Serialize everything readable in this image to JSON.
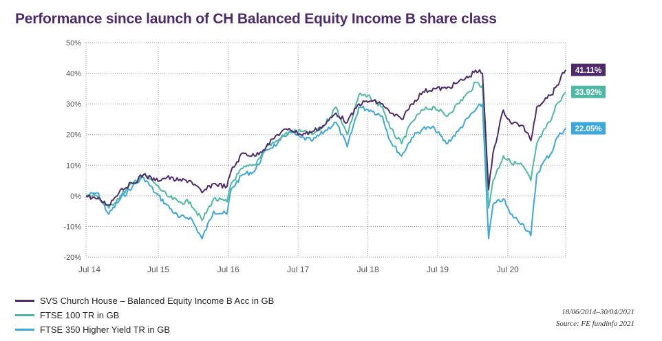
{
  "title": "Performance since launch of CH Balanced Equity Income B share class",
  "footnote": {
    "date_range": "18/06/2014–30/04/2021",
    "source": "Source: FE fundinfo 2021"
  },
  "chart_data": {
    "type": "line",
    "title": "Performance since launch of CH Balanced Equity Income B share class",
    "xlabel": "",
    "ylabel": "",
    "x_ticks": [
      "Jul 14",
      "Jul 15",
      "Jul 16",
      "Jul 17",
      "Jul 18",
      "Jul 19",
      "Jul 20"
    ],
    "x_range": [
      "2014-06-18",
      "2021-04-30"
    ],
    "y_ticks": [
      "50%",
      "40%",
      "30%",
      "20%",
      "10%",
      "0%",
      "-10%",
      "-20%"
    ],
    "ylim": [
      -20,
      50
    ],
    "grid": "dotted horizontal and vertical",
    "legend_position": "bottom-left",
    "series": [
      {
        "name": "SVS Church House – Balanced Equity Income B Acc in GB",
        "color": "#4e2a6b",
        "end_label": "41.11%",
        "points": [
          [
            "2014-06-18",
            0
          ],
          [
            "2014-08-15",
            -1
          ],
          [
            "2014-10-15",
            -3
          ],
          [
            "2014-12-15",
            2
          ],
          [
            "2015-02-15",
            4
          ],
          [
            "2015-04-15",
            7
          ],
          [
            "2015-06-15",
            5
          ],
          [
            "2015-08-15",
            6
          ],
          [
            "2015-10-15",
            5
          ],
          [
            "2015-12-15",
            5
          ],
          [
            "2016-02-15",
            1
          ],
          [
            "2016-04-15",
            4
          ],
          [
            "2016-06-24",
            3
          ],
          [
            "2016-07-15",
            8
          ],
          [
            "2016-09-15",
            14
          ],
          [
            "2016-11-15",
            13
          ],
          [
            "2017-01-15",
            16
          ],
          [
            "2017-03-15",
            20
          ],
          [
            "2017-05-15",
            22
          ],
          [
            "2017-07-15",
            20
          ],
          [
            "2017-09-15",
            21
          ],
          [
            "2017-11-15",
            23
          ],
          [
            "2018-01-15",
            27
          ],
          [
            "2018-03-15",
            24
          ],
          [
            "2018-05-15",
            30
          ],
          [
            "2018-07-15",
            31
          ],
          [
            "2018-09-15",
            30
          ],
          [
            "2018-10-25",
            27
          ],
          [
            "2018-12-24",
            25
          ],
          [
            "2019-02-15",
            30
          ],
          [
            "2019-04-15",
            34
          ],
          [
            "2019-06-15",
            35
          ],
          [
            "2019-08-15",
            35
          ],
          [
            "2019-10-15",
            37
          ],
          [
            "2019-12-15",
            39
          ],
          [
            "2020-01-15",
            41
          ],
          [
            "2020-02-20",
            40
          ],
          [
            "2020-03-23",
            2
          ],
          [
            "2020-04-15",
            14
          ],
          [
            "2020-06-08",
            28
          ],
          [
            "2020-07-15",
            24
          ],
          [
            "2020-09-15",
            23
          ],
          [
            "2020-10-30",
            18
          ],
          [
            "2020-11-30",
            29
          ],
          [
            "2021-01-15",
            32
          ],
          [
            "2021-02-15",
            33
          ],
          [
            "2021-03-15",
            36
          ],
          [
            "2021-04-30",
            41.11
          ]
        ]
      },
      {
        "name": "FTSE 100 TR in GB",
        "color": "#4db8a4",
        "end_label": "33.92%",
        "points": [
          [
            "2014-06-18",
            0
          ],
          [
            "2014-08-15",
            0
          ],
          [
            "2014-10-15",
            -4
          ],
          [
            "2014-12-15",
            0
          ],
          [
            "2015-02-15",
            4
          ],
          [
            "2015-04-15",
            7
          ],
          [
            "2015-06-15",
            4
          ],
          [
            "2015-08-15",
            0
          ],
          [
            "2015-10-15",
            -2
          ],
          [
            "2015-12-15",
            -2
          ],
          [
            "2016-02-15",
            -8
          ],
          [
            "2016-04-15",
            -1
          ],
          [
            "2016-06-24",
            -2
          ],
          [
            "2016-07-15",
            4
          ],
          [
            "2016-09-15",
            9
          ],
          [
            "2016-11-15",
            10
          ],
          [
            "2017-01-15",
            16
          ],
          [
            "2017-03-15",
            18
          ],
          [
            "2017-05-15",
            21
          ],
          [
            "2017-07-15",
            21
          ],
          [
            "2017-09-15",
            20
          ],
          [
            "2017-11-15",
            23
          ],
          [
            "2018-01-15",
            29
          ],
          [
            "2018-03-15",
            20
          ],
          [
            "2018-05-15",
            33
          ],
          [
            "2018-07-15",
            32
          ],
          [
            "2018-09-15",
            29
          ],
          [
            "2018-10-25",
            22
          ],
          [
            "2018-12-24",
            17
          ],
          [
            "2019-02-15",
            24
          ],
          [
            "2019-04-15",
            28
          ],
          [
            "2019-06-15",
            29
          ],
          [
            "2019-08-15",
            26
          ],
          [
            "2019-10-15",
            30
          ],
          [
            "2019-12-15",
            34
          ],
          [
            "2020-01-15",
            37
          ],
          [
            "2020-02-20",
            36
          ],
          [
            "2020-03-23",
            -4
          ],
          [
            "2020-04-15",
            5
          ],
          [
            "2020-06-08",
            13
          ],
          [
            "2020-07-15",
            11
          ],
          [
            "2020-09-15",
            10
          ],
          [
            "2020-10-30",
            5
          ],
          [
            "2020-11-30",
            17
          ],
          [
            "2021-01-15",
            22
          ],
          [
            "2021-02-15",
            25
          ],
          [
            "2021-03-15",
            30
          ],
          [
            "2021-04-30",
            33.92
          ]
        ]
      },
      {
        "name": "FTSE 350 Higher Yield TR in GB",
        "color": "#3ba7dc",
        "end_label": "22.05%",
        "points": [
          [
            "2014-06-18",
            0
          ],
          [
            "2014-08-15",
            1
          ],
          [
            "2014-10-15",
            -6
          ],
          [
            "2014-12-15",
            -1
          ],
          [
            "2015-02-15",
            3
          ],
          [
            "2015-04-15",
            6
          ],
          [
            "2015-06-15",
            1
          ],
          [
            "2015-08-15",
            -3
          ],
          [
            "2015-10-15",
            -7
          ],
          [
            "2015-12-15",
            -7
          ],
          [
            "2016-02-15",
            -14
          ],
          [
            "2016-04-15",
            -5
          ],
          [
            "2016-06-24",
            -6
          ],
          [
            "2016-07-15",
            2
          ],
          [
            "2016-09-15",
            7
          ],
          [
            "2016-11-15",
            8
          ],
          [
            "2017-01-15",
            15
          ],
          [
            "2017-03-15",
            17
          ],
          [
            "2017-05-15",
            21
          ],
          [
            "2017-07-15",
            19
          ],
          [
            "2017-09-15",
            18
          ],
          [
            "2017-11-15",
            21
          ],
          [
            "2018-01-15",
            24
          ],
          [
            "2018-03-15",
            16
          ],
          [
            "2018-05-15",
            29
          ],
          [
            "2018-07-15",
            28
          ],
          [
            "2018-09-15",
            26
          ],
          [
            "2018-10-25",
            18
          ],
          [
            "2018-12-24",
            13
          ],
          [
            "2019-02-15",
            19
          ],
          [
            "2019-04-15",
            22
          ],
          [
            "2019-06-15",
            22
          ],
          [
            "2019-08-15",
            17
          ],
          [
            "2019-10-15",
            21
          ],
          [
            "2019-12-15",
            26
          ],
          [
            "2020-01-15",
            28
          ],
          [
            "2020-02-20",
            30
          ],
          [
            "2020-03-23",
            -14
          ],
          [
            "2020-04-15",
            -3
          ],
          [
            "2020-06-08",
            -1
          ],
          [
            "2020-07-15",
            -6
          ],
          [
            "2020-09-15",
            -9
          ],
          [
            "2020-10-30",
            -13
          ],
          [
            "2020-11-30",
            7
          ],
          [
            "2021-01-15",
            12
          ],
          [
            "2021-02-15",
            14
          ],
          [
            "2021-03-15",
            19
          ],
          [
            "2021-04-30",
            22.05
          ]
        ]
      }
    ]
  }
}
